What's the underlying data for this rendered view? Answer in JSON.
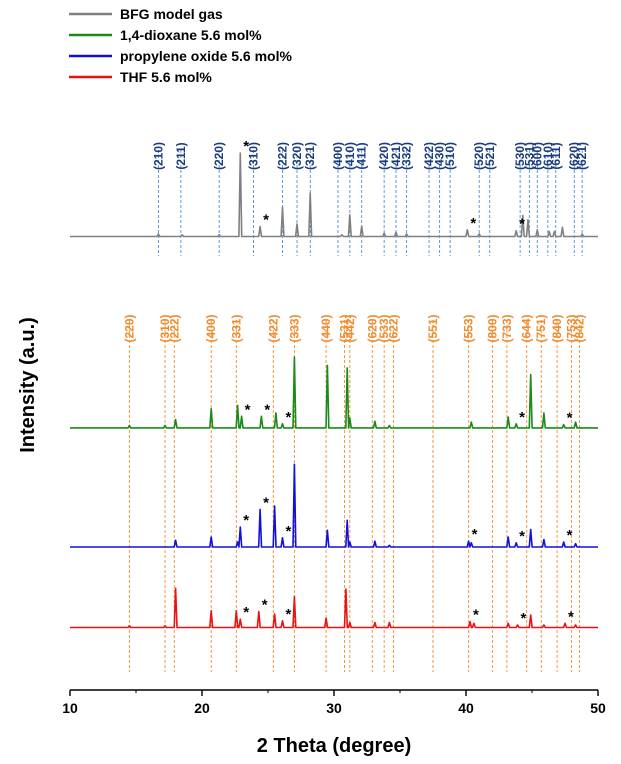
{
  "chart_data": {
    "type": "line",
    "xlabel": "2 Theta (degree)",
    "ylabel": "Intensity (a.u.)",
    "xlim": [
      10,
      50
    ],
    "x_ticks": [
      10,
      20,
      30,
      40,
      50
    ],
    "grid": false,
    "legend_position": "top-left",
    "colors": {
      "bfg": "#808080",
      "dioxane": "#1a8a1a",
      "po": "#1010e0",
      "thf": "#ee1111",
      "sI_ref": "#4a90d9",
      "sII_ref": "#f08c30",
      "sI_label": "#1c3c7c",
      "sII_label": "#f08c30"
    },
    "series": [
      {
        "name": "BFG model gas",
        "baseline_level": 0.78,
        "peaks": [
          [
            16.7,
            0.03
          ],
          [
            18.5,
            0.02
          ],
          [
            21.3,
            0.02
          ],
          [
            22.9,
            1.0
          ],
          [
            24.4,
            0.12
          ],
          [
            26.1,
            0.35
          ],
          [
            27.2,
            0.15
          ],
          [
            28.2,
            0.52
          ],
          [
            30.6,
            0.02
          ],
          [
            31.2,
            0.26
          ],
          [
            32.1,
            0.12
          ],
          [
            33.8,
            0.04
          ],
          [
            34.7,
            0.05
          ],
          [
            35.5,
            0.03
          ],
          [
            40.1,
            0.08
          ],
          [
            41.0,
            0.03
          ],
          [
            43.8,
            0.07
          ],
          [
            44.3,
            0.25
          ],
          [
            44.7,
            0.2
          ],
          [
            45.4,
            0.08
          ],
          [
            46.3,
            0.06
          ],
          [
            46.7,
            0.06
          ],
          [
            47.3,
            0.11
          ],
          [
            48.8,
            0.03
          ]
        ],
        "asterisks": [
          22.9,
          24.4,
          40.1,
          43.8
        ]
      },
      {
        "name": "1,4-dioxane 5.6 mol%",
        "baseline_level": 0.447,
        "peaks": [
          [
            14.5,
            0.03
          ],
          [
            17.2,
            0.03
          ],
          [
            18.0,
            0.1
          ],
          [
            20.7,
            0.23
          ],
          [
            22.7,
            0.27
          ],
          [
            23.0,
            0.14
          ],
          [
            24.5,
            0.14
          ],
          [
            25.6,
            0.18
          ],
          [
            26.1,
            0.05
          ],
          [
            27.0,
            0.85
          ],
          [
            29.5,
            0.75
          ],
          [
            31.0,
            0.72
          ],
          [
            31.2,
            0.12
          ],
          [
            33.1,
            0.08
          ],
          [
            34.2,
            0.03
          ],
          [
            40.4,
            0.07
          ],
          [
            43.2,
            0.13
          ],
          [
            43.8,
            0.05
          ],
          [
            44.9,
            0.64
          ],
          [
            45.9,
            0.18
          ],
          [
            47.4,
            0.04
          ],
          [
            48.3,
            0.07
          ]
        ],
        "asterisks": [
          23.0,
          24.5,
          26.1,
          43.8,
          47.4
        ]
      },
      {
        "name": "propylene oxide 5.6 mol%",
        "baseline_level": 0.24,
        "peaks": [
          [
            18.0,
            0.08
          ],
          [
            20.7,
            0.12
          ],
          [
            22.7,
            0.06
          ],
          [
            22.9,
            0.24
          ],
          [
            24.4,
            0.45
          ],
          [
            25.5,
            0.49
          ],
          [
            26.1,
            0.11
          ],
          [
            27.0,
            0.99
          ],
          [
            29.5,
            0.2
          ],
          [
            31.0,
            0.32
          ],
          [
            31.2,
            0.06
          ],
          [
            33.1,
            0.07
          ],
          [
            34.2,
            0.02
          ],
          [
            40.2,
            0.07
          ],
          [
            40.4,
            0.05
          ],
          [
            43.2,
            0.12
          ],
          [
            43.8,
            0.05
          ],
          [
            44.9,
            0.21
          ],
          [
            45.9,
            0.09
          ],
          [
            47.4,
            0.06
          ],
          [
            48.3,
            0.04
          ]
        ],
        "asterisks": [
          22.9,
          24.4,
          26.1,
          40.2,
          43.8,
          47.4
        ]
      },
      {
        "name": "THF 5.6 mol%",
        "baseline_level": 0.1,
        "peaks": [
          [
            14.5,
            0.02
          ],
          [
            17.2,
            0.02
          ],
          [
            18.0,
            0.47
          ],
          [
            20.7,
            0.2
          ],
          [
            22.6,
            0.2
          ],
          [
            22.9,
            0.1
          ],
          [
            24.3,
            0.19
          ],
          [
            25.5,
            0.16
          ],
          [
            26.1,
            0.08
          ],
          [
            27.0,
            0.37
          ],
          [
            29.4,
            0.11
          ],
          [
            30.9,
            0.46
          ],
          [
            31.2,
            0.06
          ],
          [
            33.1,
            0.06
          ],
          [
            34.2,
            0.06
          ],
          [
            40.3,
            0.07
          ],
          [
            40.6,
            0.05
          ],
          [
            43.2,
            0.05
          ],
          [
            43.9,
            0.03
          ],
          [
            44.9,
            0.15
          ],
          [
            45.9,
            0.03
          ],
          [
            47.5,
            0.05
          ],
          [
            48.3,
            0.03
          ]
        ],
        "asterisks": [
          22.9,
          24.3,
          26.1,
          40.3,
          43.9,
          47.5
        ]
      }
    ],
    "reference_lines": {
      "sI": {
        "label_level": 0.92,
        "lines": [
          {
            "hkl": "(210)",
            "x": 16.7
          },
          {
            "hkl": "(211)",
            "x": 18.4
          },
          {
            "hkl": "(220)",
            "x": 21.3
          },
          {
            "hkl": "(310)",
            "x": 23.9
          },
          {
            "hkl": "(222)",
            "x": 26.1
          },
          {
            "hkl": "(320)",
            "x": 27.2
          },
          {
            "hkl": "(321)",
            "x": 28.2
          },
          {
            "hkl": "(400)",
            "x": 30.3
          },
          {
            "hkl": "(410)",
            "x": 31.2
          },
          {
            "hkl": "(411)",
            "x": 32.1
          },
          {
            "hkl": "(420)",
            "x": 33.8
          },
          {
            "hkl": "(421)",
            "x": 34.7
          },
          {
            "hkl": "(332)",
            "x": 35.5
          },
          {
            "hkl": "(422)",
            "x": 37.2
          },
          {
            "hkl": "(430)",
            "x": 38.0
          },
          {
            "hkl": "(510)",
            "x": 38.8
          },
          {
            "hkl": "(520)",
            "x": 41.0
          },
          {
            "hkl": "(521)",
            "x": 41.8
          },
          {
            "hkl": "(530)",
            "x": 44.1
          },
          {
            "hkl": "(531)",
            "x": 44.8
          },
          {
            "hkl": "(600)",
            "x": 45.4
          },
          {
            "hkl": "(610)",
            "x": 46.2
          },
          {
            "hkl": "(611)",
            "x": 46.8
          },
          {
            "hkl": "(620)",
            "x": 48.2
          },
          {
            "hkl": "(621)",
            "x": 48.8
          }
        ]
      },
      "sII": {
        "label_level": 0.62,
        "lines": [
          {
            "hkl": "(220)",
            "x": 14.5
          },
          {
            "hkl": "(310)",
            "x": 17.2
          },
          {
            "hkl": "(222)",
            "x": 17.9
          },
          {
            "hkl": "(400)",
            "x": 20.7
          },
          {
            "hkl": "(331)",
            "x": 22.6
          },
          {
            "hkl": "(422)",
            "x": 25.4
          },
          {
            "hkl": "(333)",
            "x": 27.0
          },
          {
            "hkl": "(440)",
            "x": 29.4
          },
          {
            "hkl": "(531)",
            "x": 30.8
          },
          {
            "hkl": "(442)",
            "x": 31.2
          },
          {
            "hkl": "(620)",
            "x": 32.9
          },
          {
            "hkl": "(533)",
            "x": 33.8
          },
          {
            "hkl": "(622)",
            "x": 34.5
          },
          {
            "hkl": "(551)",
            "x": 37.5
          },
          {
            "hkl": "(553)",
            "x": 40.2
          },
          {
            "hkl": "(800)",
            "x": 42.0
          },
          {
            "hkl": "(733)",
            "x": 43.1
          },
          {
            "hkl": "(644)",
            "x": 44.6
          },
          {
            "hkl": "(751)",
            "x": 45.7
          },
          {
            "hkl": "(840)",
            "x": 46.9
          },
          {
            "hkl": "(753)",
            "x": 48.0
          },
          {
            "hkl": "(842)",
            "x": 48.6
          }
        ]
      }
    },
    "asterisk_symbol": "*"
  }
}
